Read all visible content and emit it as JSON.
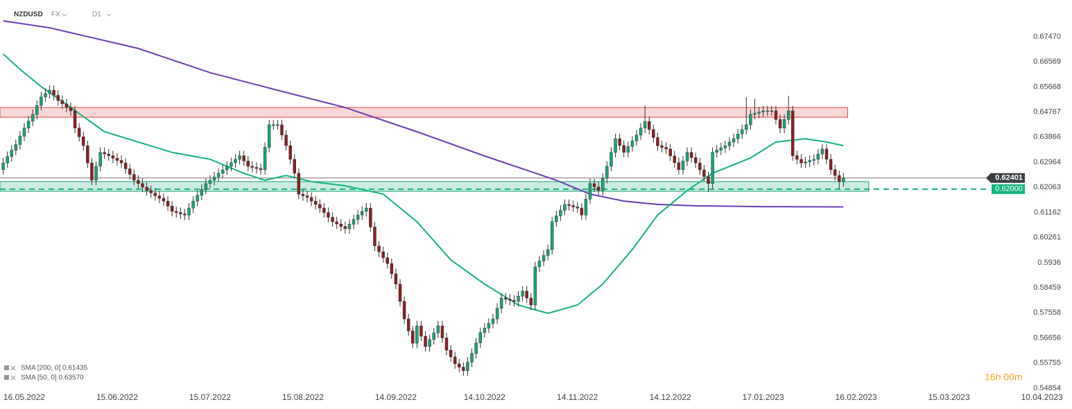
{
  "chart_data": {
    "type": "candlestick",
    "title": "NZDUSD",
    "market": "FX",
    "interval": "D1",
    "timer": "16h 00m",
    "up_color": "#17a57a",
    "down_color": "#8e1f1f",
    "xlim": [
      -0.75,
      250.5
    ],
    "ylim": [
      0.54729,
      0.68789
    ],
    "xticks": [
      {
        "value": 5,
        "label": "16.05.2022"
      },
      {
        "value": 27,
        "label": "15.06.2022"
      },
      {
        "value": 49,
        "label": "15.07.2022"
      },
      {
        "value": 71,
        "label": "15.08.2022"
      },
      {
        "value": 93,
        "label": "14.09.2022"
      },
      {
        "value": 114,
        "label": "14.10.2022"
      },
      {
        "value": 136,
        "label": "14.11.2022"
      },
      {
        "value": 158,
        "label": "14.12.2022"
      },
      {
        "value": 180,
        "label": "17.01.2023"
      },
      {
        "value": 202,
        "label": "16.02.2023"
      },
      {
        "value": 224,
        "label": "15.03.2023"
      },
      {
        "value": 246,
        "label": "10.04.2023"
      }
    ],
    "yticks": [
      {
        "value": 0.6747,
        "label": "0.67470"
      },
      0.66569,
      0.65668,
      0.64767,
      0.63866,
      0.62964,
      0.62063,
      0.61162,
      0.60261,
      0.5936,
      0.58459,
      0.57558,
      0.56656,
      0.55755,
      0.54854
    ],
    "open": [
      0.627,
      0.6294,
      0.6317,
      0.634,
      0.636,
      0.639,
      0.6419,
      0.6444,
      0.6468,
      0.65,
      0.6531,
      0.6543,
      0.6555,
      0.6537,
      0.6518,
      0.6506,
      0.6493,
      0.6481,
      0.6419,
      0.6388,
      0.6356,
      0.6294,
      0.6232,
      0.6282,
      0.6332,
      0.6326,
      0.632,
      0.6311,
      0.6303,
      0.6294,
      0.6273,
      0.6253,
      0.6232,
      0.622,
      0.6207,
      0.6195,
      0.6186,
      0.6176,
      0.6167,
      0.6157,
      0.6139,
      0.612,
      0.6116,
      0.6111,
      0.6107,
      0.6132,
      0.6157,
      0.6178,
      0.6199,
      0.622,
      0.6232,
      0.6244,
      0.6257,
      0.6269,
      0.6282,
      0.6295,
      0.6307,
      0.632,
      0.6301,
      0.6282,
      0.6278,
      0.6274,
      0.627,
      0.635,
      0.6431,
      0.6431,
      0.6431,
      0.6394,
      0.6356,
      0.6307,
      0.6257,
      0.6182,
      0.6176,
      0.617,
      0.6157,
      0.6145,
      0.6132,
      0.6116,
      0.6099,
      0.6083,
      0.6075,
      0.6066,
      0.6058,
      0.6074,
      0.6091,
      0.6107,
      0.612,
      0.6132,
      0.6064,
      0.5996,
      0.5975,
      0.5954,
      0.5933,
      0.5896,
      0.5859,
      0.5797,
      0.5734,
      0.5691,
      0.5647,
      0.5709,
      0.5672,
      0.5635,
      0.566,
      0.5684,
      0.5709,
      0.5666,
      0.5622,
      0.5598,
      0.5573,
      0.5561,
      0.5548,
      0.5579,
      0.561,
      0.5648,
      0.5685,
      0.5701,
      0.5718,
      0.5734,
      0.5772,
      0.5809,
      0.5805,
      0.5801,
      0.5797,
      0.5816,
      0.5834,
      0.5809,
      0.5784,
      0.5921,
      0.5942,
      0.5962,
      0.5983,
      0.6083,
      0.6104,
      0.6124,
      0.6145,
      0.6141,
      0.6136,
      0.6132,
      0.6107,
      0.6164,
      0.622,
      0.6208,
      0.6195,
      0.6239,
      0.6282,
      0.6332,
      0.6381,
      0.6357,
      0.6332,
      0.6353,
      0.6373,
      0.6394,
      0.6419,
      0.6443,
      0.6414,
      0.6385,
      0.6356,
      0.635,
      0.6344,
      0.6319,
      0.6295,
      0.627,
      0.6301,
      0.6332,
      0.6313,
      0.6294,
      0.6269,
      0.6245,
      0.622,
      0.6332,
      0.634,
      0.6348,
      0.6356,
      0.6369,
      0.6381,
      0.6398,
      0.6414,
      0.6431,
      0.6468,
      0.6472,
      0.6477,
      0.6481,
      0.6481,
      0.6481,
      0.645,
      0.6419,
      0.645,
      0.6481,
      0.632,
      0.6307,
      0.6294,
      0.6298,
      0.6303,
      0.6307,
      0.6326,
      0.6344,
      0.6307,
      0.627,
      0.6249,
      0.6227
    ],
    "high": [
      0.6312,
      0.6335,
      0.6358,
      0.6378,
      0.6408,
      0.6437,
      0.6462,
      0.6486,
      0.6518,
      0.6549,
      0.6561,
      0.6573,
      0.6573,
      0.6555,
      0.6536,
      0.6524,
      0.6511,
      0.6499,
      0.6437,
      0.6406,
      0.6374,
      0.6312,
      0.63,
      0.635,
      0.635,
      0.6344,
      0.6338,
      0.6329,
      0.6321,
      0.6312,
      0.6291,
      0.6271,
      0.625,
      0.6238,
      0.6225,
      0.6213,
      0.6204,
      0.6194,
      0.6185,
      0.6175,
      0.6157,
      0.6138,
      0.6134,
      0.6129,
      0.615,
      0.6175,
      0.6196,
      0.6217,
      0.6238,
      0.625,
      0.6262,
      0.6275,
      0.6287,
      0.63,
      0.6313,
      0.6325,
      0.6338,
      0.6338,
      0.6319,
      0.63,
      0.6296,
      0.6292,
      0.6368,
      0.6449,
      0.6449,
      0.6449,
      0.6449,
      0.6412,
      0.6374,
      0.6325,
      0.6275,
      0.62,
      0.6194,
      0.6188,
      0.6175,
      0.6163,
      0.615,
      0.6134,
      0.6117,
      0.6101,
      0.6093,
      0.6084,
      0.6092,
      0.6109,
      0.6125,
      0.6138,
      0.615,
      0.615,
      0.6082,
      0.6014,
      0.5993,
      0.5972,
      0.5951,
      0.5914,
      0.5877,
      0.5815,
      0.5752,
      0.5709,
      0.5727,
      0.5727,
      0.569,
      0.5678,
      0.5702,
      0.5727,
      0.5727,
      0.5684,
      0.564,
      0.5616,
      0.5591,
      0.5579,
      0.5597,
      0.5628,
      0.5666,
      0.5703,
      0.5719,
      0.5736,
      0.5752,
      0.579,
      0.5827,
      0.5827,
      0.5823,
      0.5819,
      0.5834,
      0.5852,
      0.5852,
      0.5827,
      0.5939,
      0.596,
      0.598,
      0.6001,
      0.6101,
      0.6122,
      0.6142,
      0.6163,
      0.6163,
      0.6159,
      0.6154,
      0.615,
      0.6182,
      0.6238,
      0.6238,
      0.6226,
      0.6257,
      0.63,
      0.635,
      0.6399,
      0.6399,
      0.6375,
      0.6371,
      0.6391,
      0.6412,
      0.6437,
      0.65,
      0.6461,
      0.6432,
      0.6403,
      0.6374,
      0.6368,
      0.6362,
      0.6337,
      0.6313,
      0.6319,
      0.635,
      0.635,
      0.6331,
      0.6312,
      0.6287,
      0.6263,
      0.635,
      0.6358,
      0.6366,
      0.6374,
      0.6387,
      0.6399,
      0.6416,
      0.6432,
      0.653,
      0.6486,
      0.6525,
      0.6495,
      0.6499,
      0.6499,
      0.6499,
      0.6499,
      0.6468,
      0.6468,
      0.6535,
      0.6499,
      0.6338,
      0.6325,
      0.6316,
      0.6321,
      0.6325,
      0.6344,
      0.6362,
      0.6362,
      0.6325,
      0.6288,
      0.6267,
      0.6258
    ],
    "low": [
      0.6252,
      0.6276,
      0.6299,
      0.6322,
      0.6342,
      0.6372,
      0.6401,
      0.6426,
      0.645,
      0.6482,
      0.6513,
      0.6525,
      0.6519,
      0.65,
      0.6488,
      0.6475,
      0.6463,
      0.6401,
      0.637,
      0.6338,
      0.6276,
      0.6214,
      0.6214,
      0.6264,
      0.6308,
      0.6302,
      0.6293,
      0.6285,
      0.6276,
      0.6255,
      0.6235,
      0.6214,
      0.6202,
      0.6189,
      0.6177,
      0.6168,
      0.6158,
      0.6149,
      0.6139,
      0.6121,
      0.6102,
      0.6098,
      0.6093,
      0.6089,
      0.6089,
      0.6114,
      0.6139,
      0.616,
      0.6181,
      0.6202,
      0.6214,
      0.6226,
      0.6239,
      0.6251,
      0.6264,
      0.6277,
      0.6289,
      0.6283,
      0.6264,
      0.626,
      0.6256,
      0.6252,
      0.6252,
      0.6332,
      0.6413,
      0.6413,
      0.6376,
      0.6338,
      0.6289,
      0.6239,
      0.6164,
      0.6158,
      0.6152,
      0.6139,
      0.6127,
      0.6114,
      0.6098,
      0.6081,
      0.6065,
      0.6057,
      0.6048,
      0.604,
      0.604,
      0.6056,
      0.6073,
      0.6089,
      0.6102,
      0.6046,
      0.5978,
      0.5957,
      0.5936,
      0.5915,
      0.5878,
      0.5841,
      0.5779,
      0.5716,
      0.5673,
      0.5629,
      0.5629,
      0.5654,
      0.5617,
      0.5617,
      0.5642,
      0.5666,
      0.5648,
      0.5604,
      0.558,
      0.5555,
      0.5543,
      0.553,
      0.553,
      0.5561,
      0.5592,
      0.563,
      0.5667,
      0.5683,
      0.57,
      0.5716,
      0.5754,
      0.5787,
      0.5783,
      0.5779,
      0.5779,
      0.5798,
      0.5791,
      0.5766,
      0.5766,
      0.5903,
      0.5924,
      0.5944,
      0.5965,
      0.6065,
      0.6086,
      0.6106,
      0.6123,
      0.6118,
      0.6114,
      0.6089,
      0.6089,
      0.6146,
      0.619,
      0.6177,
      0.6177,
      0.6221,
      0.6264,
      0.6314,
      0.6339,
      0.6314,
      0.6314,
      0.6335,
      0.6355,
      0.6376,
      0.6401,
      0.6396,
      0.6367,
      0.6338,
      0.6332,
      0.6326,
      0.6301,
      0.6277,
      0.6252,
      0.6252,
      0.6283,
      0.6295,
      0.6276,
      0.6251,
      0.6227,
      0.619,
      0.6202,
      0.6314,
      0.6322,
      0.633,
      0.6338,
      0.6351,
      0.6363,
      0.638,
      0.6396,
      0.6413,
      0.645,
      0.6454,
      0.6459,
      0.6463,
      0.6463,
      0.6432,
      0.6401,
      0.6401,
      0.6432,
      0.6302,
      0.6289,
      0.6276,
      0.6276,
      0.628,
      0.6285,
      0.6289,
      0.6308,
      0.6289,
      0.6252,
      0.6231,
      0.62,
      0.6209
    ],
    "close": [
      0.6294,
      0.6317,
      0.634,
      0.636,
      0.639,
      0.6419,
      0.6444,
      0.6468,
      0.65,
      0.6531,
      0.6543,
      0.6555,
      0.6537,
      0.6518,
      0.6506,
      0.6493,
      0.6481,
      0.6419,
      0.6388,
      0.6356,
      0.6294,
      0.6232,
      0.6282,
      0.6332,
      0.6326,
      0.632,
      0.6311,
      0.6303,
      0.6294,
      0.6273,
      0.6253,
      0.6232,
      0.622,
      0.6207,
      0.6195,
      0.6186,
      0.6176,
      0.6167,
      0.6157,
      0.6139,
      0.612,
      0.6116,
      0.6111,
      0.6107,
      0.6132,
      0.6157,
      0.6178,
      0.6199,
      0.622,
      0.6232,
      0.6244,
      0.6257,
      0.6269,
      0.6282,
      0.6295,
      0.6307,
      0.632,
      0.6301,
      0.6282,
      0.6278,
      0.6274,
      0.627,
      0.635,
      0.6431,
      0.6431,
      0.6431,
      0.6394,
      0.6356,
      0.6307,
      0.6257,
      0.6182,
      0.6176,
      0.617,
      0.6157,
      0.6145,
      0.6132,
      0.6116,
      0.6099,
      0.6083,
      0.6075,
      0.6066,
      0.6058,
      0.6074,
      0.6091,
      0.6107,
      0.612,
      0.6132,
      0.6064,
      0.5996,
      0.5975,
      0.5954,
      0.5933,
      0.5896,
      0.5859,
      0.5797,
      0.5734,
      0.5691,
      0.5647,
      0.5709,
      0.5672,
      0.5635,
      0.566,
      0.5684,
      0.5709,
      0.5666,
      0.5622,
      0.5598,
      0.5573,
      0.5561,
      0.5548,
      0.5579,
      0.561,
      0.5648,
      0.5685,
      0.5701,
      0.5718,
      0.5734,
      0.5772,
      0.5809,
      0.5805,
      0.5801,
      0.5797,
      0.5816,
      0.5834,
      0.5809,
      0.5784,
      0.5921,
      0.5942,
      0.5962,
      0.5983,
      0.6083,
      0.6104,
      0.6124,
      0.6145,
      0.6141,
      0.6136,
      0.6132,
      0.6107,
      0.6164,
      0.622,
      0.6208,
      0.6195,
      0.6239,
      0.6282,
      0.6332,
      0.6381,
      0.6357,
      0.6332,
      0.6353,
      0.6373,
      0.6394,
      0.6419,
      0.6443,
      0.6414,
      0.6385,
      0.6356,
      0.635,
      0.6344,
      0.6319,
      0.6295,
      0.627,
      0.6301,
      0.6332,
      0.6313,
      0.6294,
      0.6269,
      0.6245,
      0.622,
      0.6332,
      0.634,
      0.6348,
      0.6356,
      0.6369,
      0.6381,
      0.6398,
      0.6414,
      0.6431,
      0.6468,
      0.6472,
      0.6477,
      0.6481,
      0.6481,
      0.6481,
      0.645,
      0.6419,
      0.645,
      0.6481,
      0.632,
      0.6307,
      0.6294,
      0.6298,
      0.6303,
      0.6307,
      0.6326,
      0.6344,
      0.6307,
      0.627,
      0.6249,
      0.6227,
      0.624
    ],
    "series": [
      {
        "name": "SMA [200, 0] 0.61435",
        "color": "#6a3fb5",
        "x": [
          0,
          11,
          32,
          49,
          65,
          81,
          98,
          114,
          131,
          139,
          147,
          155,
          164,
          180,
          199
        ],
        "values": [
          0.6804,
          0.6779,
          0.6705,
          0.6618,
          0.6555,
          0.6493,
          0.6406,
          0.6319,
          0.6232,
          0.6182,
          0.6157,
          0.6145,
          0.614,
          0.6137,
          0.6136
        ]
      },
      {
        "name": "SMA [50, 0] 0.63570",
        "color": "#14b47c",
        "x": [
          0,
          4,
          9,
          16,
          24,
          32,
          40,
          49,
          57,
          62,
          67,
          73,
          81,
          90,
          98,
          106,
          114,
          122,
          129,
          136,
          142,
          149,
          155,
          162,
          168,
          177,
          183,
          190,
          195,
          199
        ],
        "values": [
          0.6685,
          0.663,
          0.6568,
          0.6493,
          0.6406,
          0.6369,
          0.6332,
          0.6307,
          0.6257,
          0.6232,
          0.6249,
          0.6227,
          0.6212,
          0.6182,
          0.6083,
          0.5946,
          0.5859,
          0.5784,
          0.5754,
          0.5784,
          0.5859,
          0.5983,
          0.6107,
          0.6195,
          0.6257,
          0.6312,
          0.6369,
          0.6381,
          0.6369,
          0.6356
        ]
      }
    ],
    "zones": [
      {
        "x": [
          -0.75,
          200
        ],
        "y": [
          0.6458,
          0.6493
        ],
        "color": "#e04545"
      },
      {
        "x": [
          -0.75,
          205
        ],
        "y": [
          0.6192,
          0.6227
        ],
        "color": "#17a57a"
      }
    ],
    "current_price": {
      "value": 0.62401,
      "color": "#3a3f44"
    },
    "level": {
      "value": 0.62,
      "label": "0.62000",
      "color": "#14b47c"
    }
  }
}
